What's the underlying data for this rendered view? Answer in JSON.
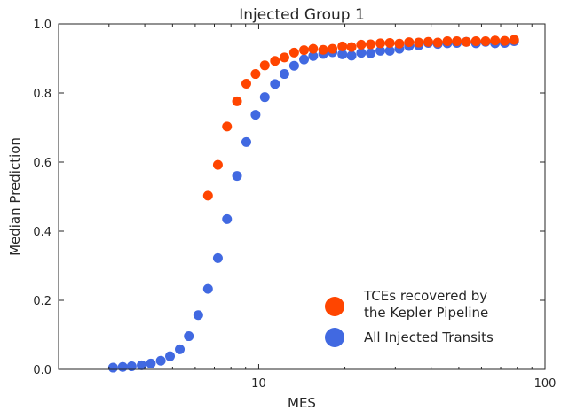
{
  "chart_data": {
    "type": "scatter",
    "title": "Injected Group 1",
    "xlabel": "MES",
    "ylabel": "Median Prediction",
    "xscale": "log",
    "xlim": [
      2,
      100
    ],
    "ylim": [
      0.0,
      1.0
    ],
    "xticks": [
      10,
      100
    ],
    "xtick_labels": [
      "10",
      "100"
    ],
    "yticks": [
      0.0,
      0.2,
      0.4,
      0.6,
      0.8,
      1.0
    ],
    "ytick_labels": [
      "0.0",
      "0.2",
      "0.4",
      "0.6",
      "0.8",
      "1.0"
    ],
    "grid": false,
    "legend_position": "lower-right",
    "series": [
      {
        "name": "All Injected Transits",
        "color": "#4169e1",
        "x": [
          3.1,
          3.35,
          3.6,
          3.9,
          4.2,
          4.55,
          4.9,
          5.3,
          5.7,
          6.15,
          6.65,
          7.2,
          7.75,
          8.4,
          9.05,
          9.75,
          10.5,
          11.4,
          12.3,
          13.3,
          14.4,
          15.5,
          16.8,
          18.1,
          19.6,
          21.1,
          22.8,
          24.6,
          26.6,
          28.7,
          31.0,
          33.5,
          36.2,
          39.1,
          42.2,
          45.6,
          49.2,
          53.1,
          57.4,
          62.0,
          66.9,
          72.3,
          78.0
        ],
        "y": [
          0.005,
          0.007,
          0.009,
          0.012,
          0.017,
          0.025,
          0.038,
          0.058,
          0.096,
          0.157,
          0.233,
          0.322,
          0.435,
          0.56,
          0.658,
          0.737,
          0.788,
          0.826,
          0.855,
          0.879,
          0.897,
          0.907,
          0.913,
          0.918,
          0.912,
          0.908,
          0.916,
          0.915,
          0.922,
          0.922,
          0.928,
          0.936,
          0.938,
          0.945,
          0.942,
          0.944,
          0.945,
          0.948,
          0.944,
          0.948,
          0.944,
          0.945,
          0.95
        ]
      },
      {
        "name": "TCEs recovered by the Kepler Pipeline",
        "legend_lines": [
          "TCEs recovered by",
          "the Kepler Pipeline"
        ],
        "color": "#ff4500",
        "x": [
          6.65,
          7.2,
          7.75,
          8.4,
          9.05,
          9.75,
          10.5,
          11.4,
          12.3,
          13.3,
          14.4,
          15.5,
          16.8,
          18.1,
          19.6,
          21.1,
          22.8,
          24.6,
          26.6,
          28.7,
          31.0,
          33.5,
          36.2,
          39.1,
          42.2,
          45.6,
          49.2,
          53.1,
          57.4,
          62.0,
          66.9,
          72.3,
          78.0
        ],
        "y": [
          0.503,
          0.592,
          0.703,
          0.776,
          0.827,
          0.855,
          0.88,
          0.893,
          0.903,
          0.917,
          0.924,
          0.928,
          0.925,
          0.928,
          0.935,
          0.933,
          0.94,
          0.941,
          0.944,
          0.945,
          0.943,
          0.947,
          0.946,
          0.948,
          0.946,
          0.95,
          0.95,
          0.948,
          0.95,
          0.95,
          0.952,
          0.951,
          0.954
        ]
      }
    ]
  }
}
